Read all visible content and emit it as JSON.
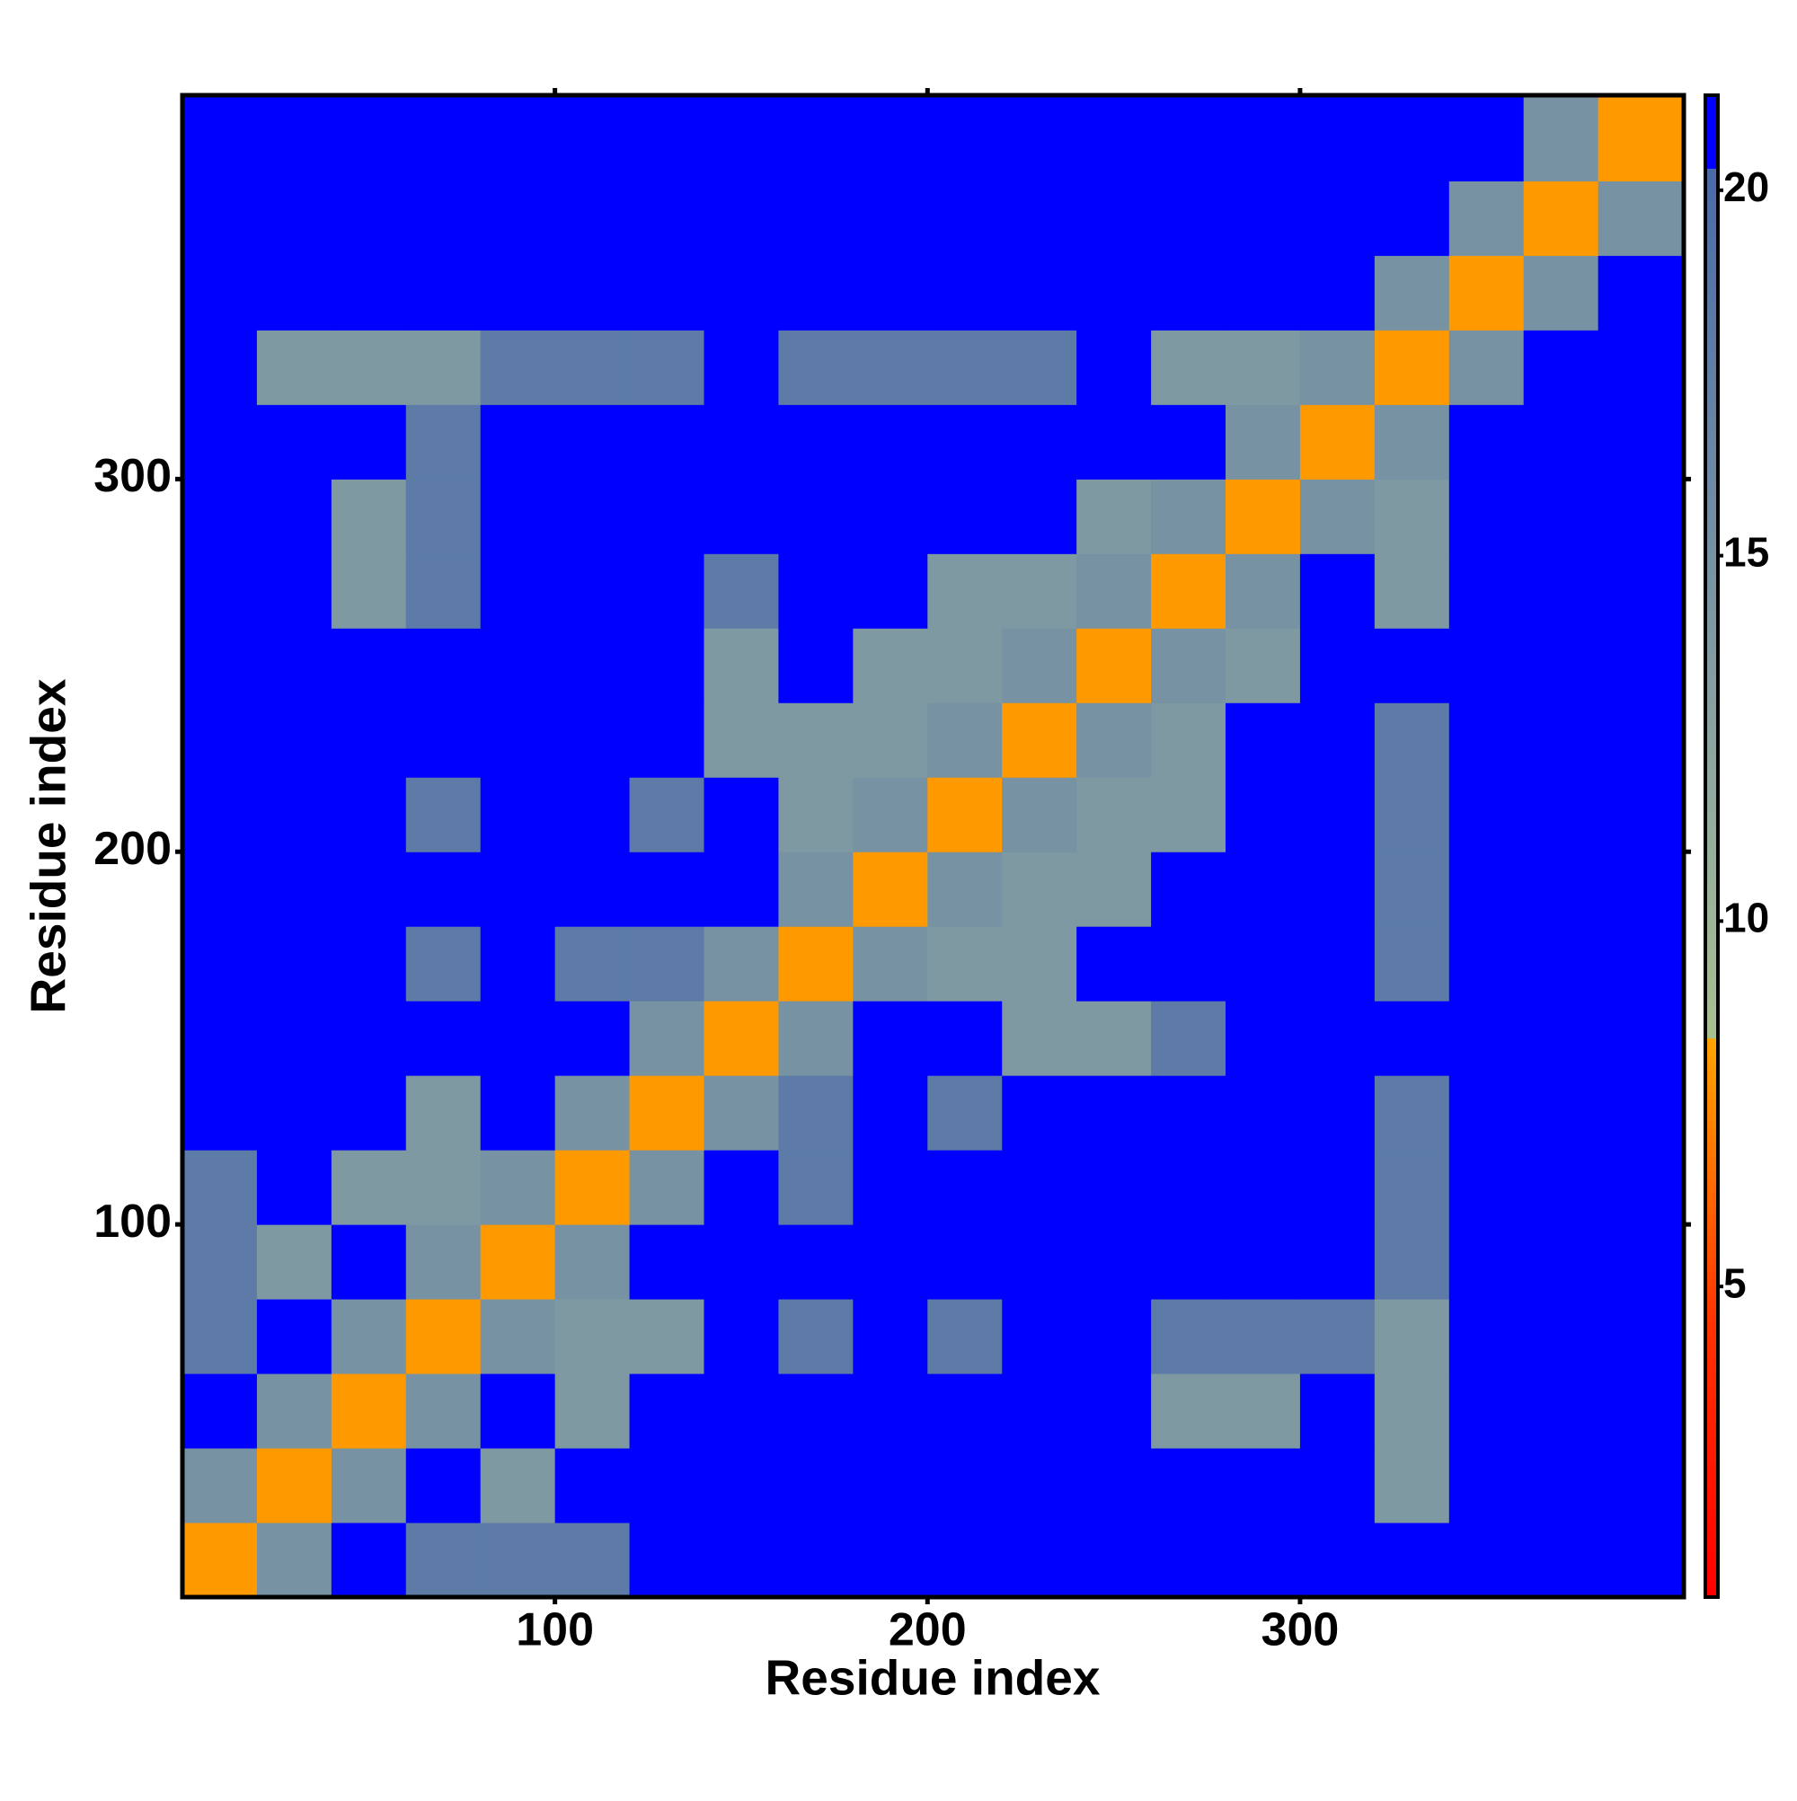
{
  "chart_data": {
    "type": "heatmap",
    "x_label": "Residue index",
    "y_label": "Residue index",
    "x_bins": [
      0,
      20,
      40,
      60,
      80,
      100,
      120,
      140,
      160,
      180,
      200,
      220,
      240,
      260,
      280,
      300,
      320,
      340,
      360,
      380,
      403
    ],
    "y_bins": [
      0,
      20,
      40,
      60,
      80,
      100,
      120,
      140,
      160,
      180,
      200,
      220,
      240,
      260,
      280,
      300,
      320,
      340,
      360,
      380,
      403
    ],
    "z": [
      [
        8,
        15,
        21,
        18,
        18,
        18,
        21,
        21,
        21,
        21,
        21,
        21,
        21,
        21,
        21,
        21,
        21,
        21,
        21,
        21
      ],
      [
        15,
        8,
        15,
        21,
        14,
        21,
        21,
        21,
        21,
        21,
        21,
        21,
        21,
        21,
        21,
        21,
        14,
        21,
        21,
        21
      ],
      [
        21,
        15,
        8,
        15,
        21,
        14,
        21,
        21,
        21,
        21,
        21,
        21,
        21,
        14,
        14,
        21,
        14,
        21,
        21,
        21
      ],
      [
        18,
        21,
        15,
        8,
        15,
        14,
        14,
        21,
        18,
        21,
        18,
        21,
        21,
        18,
        18,
        18,
        14,
        21,
        21,
        21
      ],
      [
        18,
        14,
        21,
        15,
        8,
        15,
        21,
        21,
        21,
        21,
        21,
        21,
        21,
        21,
        21,
        21,
        18,
        21,
        21,
        21
      ],
      [
        18,
        21,
        14,
        14,
        15,
        8,
        15,
        21,
        18,
        21,
        21,
        21,
        21,
        21,
        21,
        21,
        18,
        21,
        21,
        21
      ],
      [
        21,
        21,
        21,
        14,
        21,
        15,
        8,
        15,
        18,
        21,
        18,
        21,
        21,
        21,
        21,
        21,
        18,
        21,
        21,
        21
      ],
      [
        21,
        21,
        21,
        21,
        21,
        21,
        15,
        8,
        15,
        21,
        21,
        14,
        14,
        18,
        21,
        21,
        21,
        21,
        21,
        21
      ],
      [
        21,
        21,
        21,
        18,
        21,
        18,
        18,
        15,
        8,
        15,
        14,
        14,
        21,
        21,
        21,
        21,
        18,
        21,
        21,
        21
      ],
      [
        21,
        21,
        21,
        21,
        21,
        21,
        21,
        21,
        15,
        8,
        15,
        14,
        14,
        21,
        21,
        21,
        18,
        21,
        21,
        21
      ],
      [
        21,
        21,
        21,
        18,
        21,
        21,
        18,
        21,
        14,
        15,
        8,
        15,
        14,
        14,
        21,
        21,
        18,
        21,
        21,
        21
      ],
      [
        21,
        21,
        21,
        21,
        21,
        21,
        21,
        14,
        14,
        14,
        15,
        8,
        15,
        14,
        21,
        21,
        18,
        21,
        21,
        21
      ],
      [
        21,
        21,
        21,
        21,
        21,
        21,
        21,
        14,
        21,
        14,
        14,
        15,
        8,
        15,
        14,
        21,
        21,
        21,
        21,
        21
      ],
      [
        21,
        21,
        14,
        18,
        21,
        21,
        21,
        18,
        21,
        21,
        14,
        14,
        15,
        8,
        15,
        21,
        14,
        21,
        21,
        21
      ],
      [
        21,
        21,
        14,
        18,
        21,
        21,
        21,
        21,
        21,
        21,
        21,
        21,
        14,
        15,
        8,
        15,
        14,
        21,
        21,
        21
      ],
      [
        21,
        21,
        21,
        18,
        21,
        21,
        21,
        21,
        21,
        21,
        21,
        21,
        21,
        21,
        15,
        8,
        15,
        21,
        21,
        21
      ],
      [
        21,
        14,
        14,
        14,
        18,
        18,
        18,
        21,
        18,
        18,
        18,
        18,
        21,
        14,
        14,
        15,
        8,
        15,
        21,
        21
      ],
      [
        21,
        21,
        21,
        21,
        21,
        21,
        21,
        21,
        21,
        21,
        21,
        21,
        21,
        21,
        21,
        21,
        15,
        8,
        15,
        21
      ],
      [
        21,
        21,
        21,
        21,
        21,
        21,
        21,
        21,
        21,
        21,
        21,
        21,
        21,
        21,
        21,
        21,
        21,
        15,
        8,
        15
      ],
      [
        21,
        21,
        21,
        21,
        21,
        21,
        21,
        21,
        21,
        21,
        21,
        21,
        21,
        21,
        21,
        21,
        21,
        21,
        15,
        8
      ]
    ],
    "xlim": [
      0,
      403
    ],
    "ylim": [
      0,
      403
    ],
    "xticks": [
      100,
      200,
      300
    ],
    "yticks": [
      100,
      200,
      300
    ],
    "zlim": [
      0.75,
      21.3
    ],
    "zticks": [
      5,
      10,
      15,
      20
    ],
    "colorscale": [
      {
        "value": 0.75,
        "color": "#ff0000"
      },
      {
        "value": 4.5,
        "color": "#ff3300"
      },
      {
        "value": 8.4,
        "color": "#ffa500"
      },
      {
        "value": 8.4,
        "color": "#a8c090"
      },
      {
        "value": 12,
        "color": "#8fa8a0"
      },
      {
        "value": 20.3,
        "color": "#4a6aa8"
      },
      {
        "value": 20.3,
        "color": "#0000ff"
      },
      {
        "value": 21.3,
        "color": "#0000ff"
      }
    ]
  }
}
